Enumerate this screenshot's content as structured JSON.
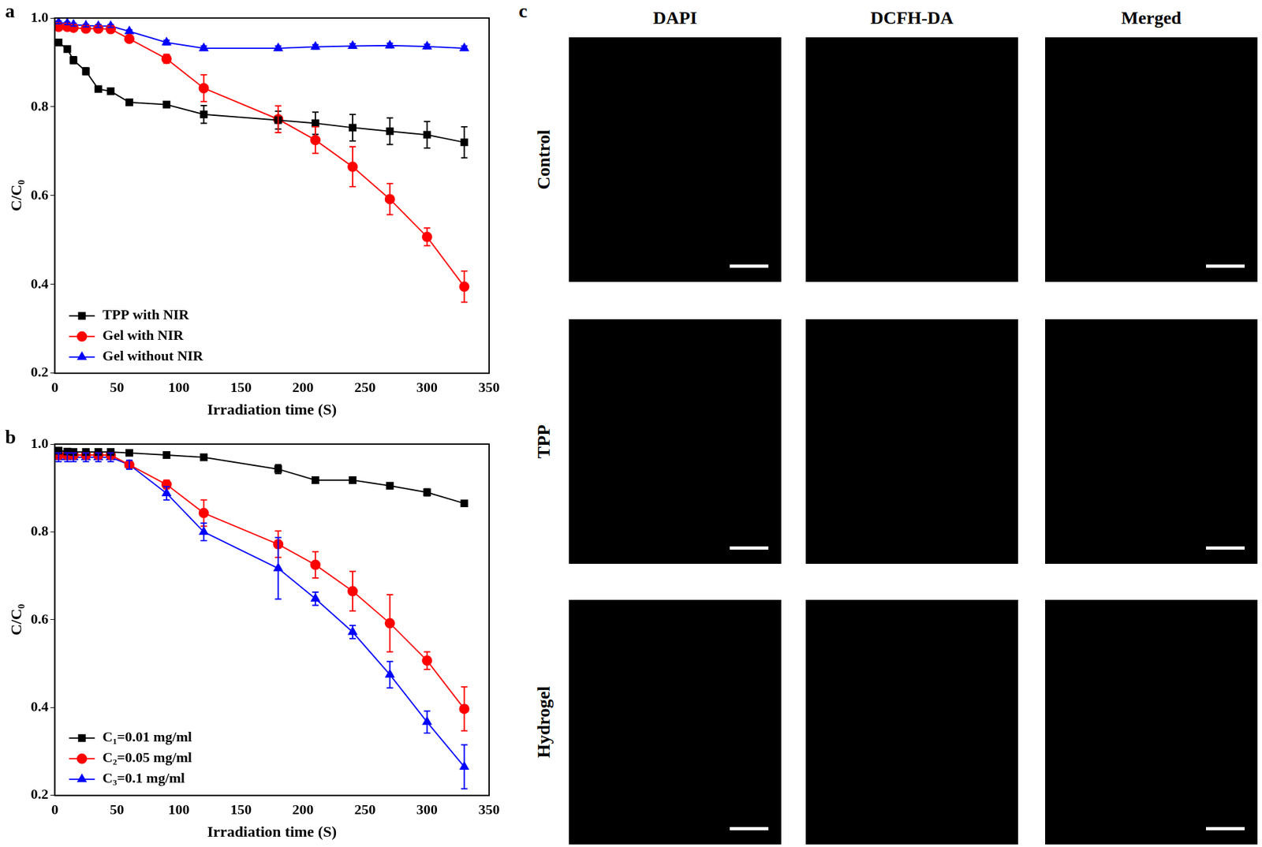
{
  "chart_data": [
    {
      "type": "line",
      "title": "a",
      "x": [
        3,
        10,
        15,
        25,
        35,
        45,
        60,
        90,
        120,
        180,
        210,
        240,
        270,
        300,
        330
      ],
      "series": [
        {
          "name": "TPP with NIR",
          "color": "#000000",
          "marker": "square",
          "values": [
            0.945,
            0.93,
            0.905,
            0.88,
            0.84,
            0.835,
            0.81,
            0.805,
            0.783,
            0.77,
            0.763,
            0.753,
            0.745,
            0.737,
            0.72
          ],
          "errors": [
            0.005,
            0.005,
            0.008,
            0.008,
            0.005,
            0.005,
            0.005,
            0.005,
            0.02,
            0.02,
            0.025,
            0.03,
            0.03,
            0.03,
            0.035
          ]
        },
        {
          "name": "Gel with NIR",
          "color": "#ff0000",
          "marker": "circle",
          "values": [
            0.98,
            0.98,
            0.978,
            0.976,
            0.976,
            0.975,
            0.953,
            0.908,
            0.842,
            0.772,
            0.725,
            0.665,
            0.592,
            0.507,
            0.395
          ],
          "errors": [
            0.005,
            0.005,
            0.005,
            0.005,
            0.005,
            0.005,
            0.005,
            0.01,
            0.03,
            0.03,
            0.03,
            0.045,
            0.035,
            0.02,
            0.035
          ]
        },
        {
          "name": "Gel without NIR",
          "color": "#0000ff",
          "marker": "triangle",
          "values": [
            0.99,
            0.988,
            0.985,
            0.983,
            0.982,
            0.982,
            0.97,
            0.945,
            0.932,
            0.932,
            0.935,
            0.937,
            0.938,
            0.936,
            0.932
          ],
          "errors": [
            0.003,
            0.003,
            0.003,
            0.003,
            0.003,
            0.003,
            0.003,
            0.005,
            0.005,
            0.005,
            0.005,
            0.005,
            0.005,
            0.005,
            0.005
          ]
        }
      ],
      "xlim": [
        0,
        350
      ],
      "xticks": [
        0,
        50,
        100,
        150,
        200,
        250,
        300,
        350
      ],
      "ylim": [
        0.2,
        1
      ],
      "yticks": [
        0.2,
        0.4,
        0.6,
        0.8,
        {
          "value": 1,
          "label": "1.0"
        }
      ],
      "x_label": "Irradiation time (S)",
      "y_label": "C/C₀",
      "legend": "lower left",
      "grid": false
    },
    {
      "type": "line",
      "title": "b",
      "x": [
        3,
        10,
        15,
        25,
        35,
        45,
        60,
        90,
        120,
        180,
        210,
        240,
        270,
        300,
        330
      ],
      "series": [
        {
          "name": "C₁=0.01 mg/ml",
          "color": "#000000",
          "marker": "square",
          "values": [
            0.985,
            0.983,
            0.982,
            0.982,
            0.982,
            0.982,
            0.98,
            0.975,
            0.97,
            0.943,
            0.918,
            0.918,
            0.905,
            0.89,
            0.865
          ],
          "errors": [
            0.005,
            0.005,
            0.005,
            0.005,
            0.005,
            0.005,
            0.005,
            0.005,
            0.005,
            0.01,
            0.005,
            0.005,
            0.005,
            0.008,
            0.005
          ]
        },
        {
          "name": "C₂=0.05 mg/ml",
          "color": "#ff0000",
          "marker": "circle",
          "values": [
            0.975,
            0.975,
            0.975,
            0.975,
            0.975,
            0.975,
            0.953,
            0.908,
            0.843,
            0.772,
            0.725,
            0.665,
            0.592,
            0.507,
            0.397
          ],
          "errors": [
            0.005,
            0.005,
            0.005,
            0.005,
            0.005,
            0.005,
            0.005,
            0.01,
            0.03,
            0.03,
            0.03,
            0.045,
            0.065,
            0.02,
            0.05
          ]
        },
        {
          "name": "C₃=0.1 mg/ml",
          "color": "#0000ff",
          "marker": "triangle",
          "values": [
            0.97,
            0.97,
            0.97,
            0.97,
            0.97,
            0.97,
            0.953,
            0.888,
            0.8,
            0.717,
            0.648,
            0.572,
            0.475,
            0.367,
            0.265
          ],
          "errors": [
            0.01,
            0.01,
            0.01,
            0.01,
            0.01,
            0.01,
            0.01,
            0.015,
            0.02,
            0.07,
            0.015,
            0.015,
            0.03,
            0.025,
            0.05
          ]
        }
      ],
      "xlim": [
        0,
        350
      ],
      "xticks": [
        0,
        50,
        100,
        150,
        200,
        250,
        300,
        350
      ],
      "ylim": [
        0.2,
        1
      ],
      "yticks": [
        0.2,
        0.4,
        0.6,
        0.8,
        {
          "value": 1,
          "label": "1.0"
        }
      ],
      "x_label": "Irradiation time (S)",
      "y_label": "C/C₀",
      "legend": "lower left",
      "grid": false
    }
  ],
  "panel_c": {
    "label": "c",
    "columns": [
      "DAPI",
      "DCFH-DA",
      "Merged"
    ],
    "rows": [
      "Control",
      "TPP",
      "Hydrogel"
    ]
  }
}
